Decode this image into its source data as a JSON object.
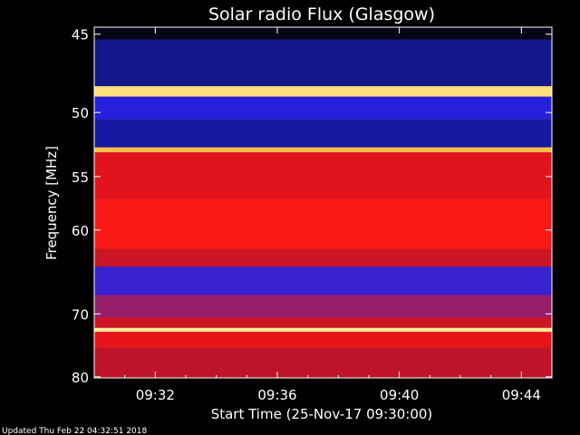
{
  "title": "Solar radio Flux (Glasgow)",
  "ylabel": "Frequency [MHz]",
  "xlabel": "Start Time (25-Nov-17 09:30:00)",
  "footer": "Updated Thu Feb 22 04:32:51 2018",
  "colors": {
    "background": "#000000",
    "text": "#ffffff",
    "axis": "#ffffff"
  },
  "chart_data": {
    "type": "heatmap",
    "title": "Solar radio Flux (Glasgow)",
    "xlabel": "Start Time (25-Nov-17 09:30:00)",
    "ylabel": "Frequency [MHz]",
    "x_ticks": [
      "09:32",
      "09:36",
      "09:40",
      "09:44"
    ],
    "y_ticks": [
      45,
      50,
      55,
      60,
      70,
      80
    ],
    "x_tick_minutes": [
      2,
      6,
      10,
      14
    ],
    "xlim_minutes": [
      0,
      15
    ],
    "ylim_mhz": [
      44.6,
      80.2
    ],
    "y_scale": "reciprocal",
    "colormap": "black-blue-red-yellow-white",
    "grid": false,
    "bands": [
      {
        "from_mhz": 44.6,
        "to_mhz": 45.3,
        "level": 0.05
      },
      {
        "from_mhz": 45.3,
        "to_mhz": 48.2,
        "level": 0.22
      },
      {
        "from_mhz": 48.2,
        "to_mhz": 48.9,
        "level": 0.93
      },
      {
        "from_mhz": 48.9,
        "to_mhz": 50.5,
        "level": 0.32
      },
      {
        "from_mhz": 50.5,
        "to_mhz": 52.6,
        "level": 0.24
      },
      {
        "from_mhz": 52.6,
        "to_mhz": 53.0,
        "level": 0.88
      },
      {
        "from_mhz": 53.0,
        "to_mhz": 57.0,
        "level": 0.6
      },
      {
        "from_mhz": 57.0,
        "to_mhz": 62.0,
        "level": 0.67
      },
      {
        "from_mhz": 62.0,
        "to_mhz": 64.0,
        "level": 0.55
      },
      {
        "from_mhz": 64.0,
        "to_mhz": 67.5,
        "level": 0.34
      },
      {
        "from_mhz": 67.5,
        "to_mhz": 70.5,
        "level": 0.46
      },
      {
        "from_mhz": 70.5,
        "to_mhz": 72.0,
        "level": 0.55
      },
      {
        "from_mhz": 72.0,
        "to_mhz": 72.6,
        "level": 0.95
      },
      {
        "from_mhz": 72.6,
        "to_mhz": 75.0,
        "level": 0.62
      },
      {
        "from_mhz": 75.0,
        "to_mhz": 80.2,
        "level": 0.52
      }
    ]
  }
}
